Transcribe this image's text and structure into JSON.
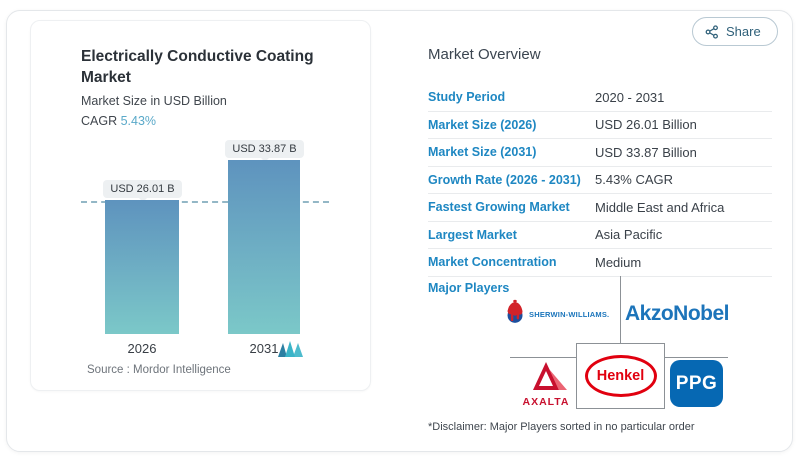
{
  "share": {
    "label": "Share"
  },
  "chart_card": {
    "title": "Electrically Conductive Coating Market",
    "subtitle": "Market Size in USD Billion",
    "cagr_label": "CAGR ",
    "cagr_value": "5.43%",
    "source_label": "Source :  ",
    "source_value": "Mordor Intelligence"
  },
  "chart_data": {
    "type": "bar",
    "title": "Electrically Conductive Coating Market",
    "ylabel": "Market Size in USD Billion",
    "categories": [
      "2026",
      "2031"
    ],
    "values": [
      26.01,
      33.87
    ],
    "bar_labels": [
      "USD 26.01 B",
      "USD 33.87 B"
    ],
    "ylim": [
      0,
      40
    ],
    "grid": false,
    "annotations": [
      "horizontal dashed reference line at 26.01"
    ],
    "colors": {
      "bar_gradient_top": "#5e93be",
      "bar_gradient_bottom": "#7bc8c8",
      "dashed_line": "#93b7c6"
    }
  },
  "overview": {
    "heading": "Market Overview",
    "rows": [
      {
        "label": "Study Period",
        "value": "2020 - 2031"
      },
      {
        "label": "Market Size (2026)",
        "value": "USD 26.01 Billion"
      },
      {
        "label": "Market Size (2031)",
        "value": "USD 33.87 Billion"
      },
      {
        "label": "Growth Rate (2026 - 2031)",
        "value": "5.43% CAGR"
      },
      {
        "label": "Fastest Growing Market",
        "value": "Middle East and Africa"
      },
      {
        "label": "Largest Market",
        "value": "Asia Pacific"
      },
      {
        "label": "Market Concentration",
        "value": "Medium"
      }
    ],
    "major_players_label": "Major Players",
    "players": [
      "Sherwin-Williams",
      "AkzoNobel",
      "Axalta",
      "Henkel",
      "PPG"
    ],
    "logos": {
      "sherwin_text": "SHERWIN-WILLIAMS.",
      "akzo_text": "AkzoNobel",
      "axalta_text": "AXALTA",
      "henkel_text": "Henkel",
      "ppg_text": "PPG"
    },
    "disclaimer": "*Disclaimer: Major Players sorted in no particular order"
  },
  "colors": {
    "accent_blue": "#1e87c2",
    "cagr_blue": "#5aa9c9",
    "sherwin_blue": "#1b75bb",
    "akzo_blue": "#1c74ba",
    "axalta_red": "#c8102e",
    "henkel_red": "#e1000f",
    "ppg_blue": "#0668b3"
  }
}
